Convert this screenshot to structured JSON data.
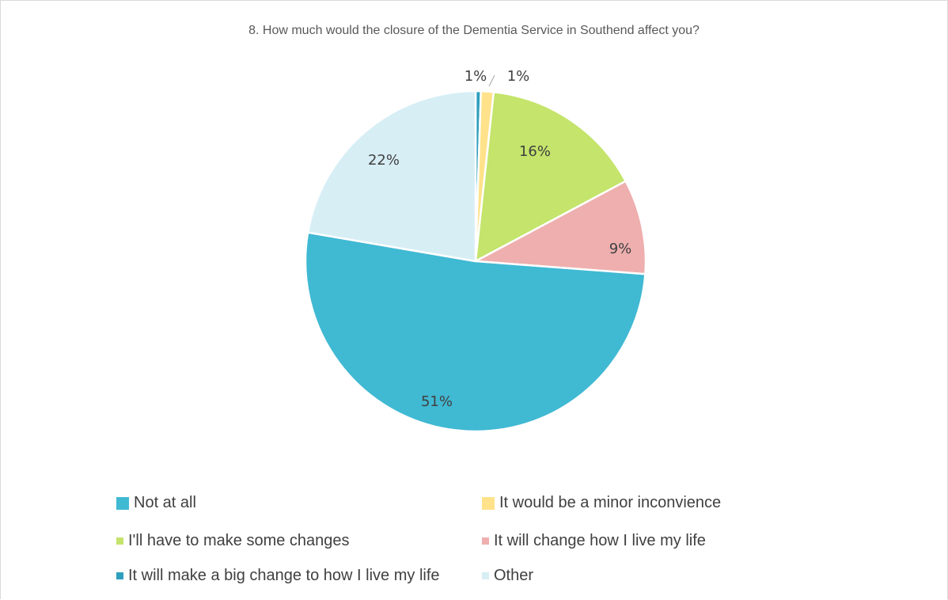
{
  "chart_data": {
    "type": "pie",
    "title": "8. How much would the closure of the Dementia Service in Southend affect you?",
    "categories": [
      "It will make a big change to how I live my life",
      "It would be a minor inconvience",
      "I'll have to make some changes",
      "It will change how I live my life",
      "Not at all",
      "Other"
    ],
    "values": [
      0.5,
      1.2,
      15.5,
      9.0,
      51.5,
      22.3
    ],
    "data_labels": [
      "1%",
      "1%",
      "16%",
      "9%",
      "51%",
      "22%"
    ],
    "colors": [
      "#2e9fbd",
      "#ffe28a",
      "#c4e46b",
      "#efafaf",
      "#40b9d3",
      "#d7eef5"
    ],
    "legend": {
      "placement": "bottom",
      "entries": [
        {
          "label": "Not at all",
          "color": "#40b9d3"
        },
        {
          "label": "It would be a minor inconvience",
          "color": "#ffe28a"
        },
        {
          "label": "I'll have to make some changes",
          "color": "#c4e46b"
        },
        {
          "label": "It will change how I live my life",
          "color": "#efafaf"
        },
        {
          "label": "It will make a big change to how I live my life",
          "color": "#2e9fbd"
        },
        {
          "label": "Other",
          "color": "#d7eef5"
        }
      ]
    }
  }
}
